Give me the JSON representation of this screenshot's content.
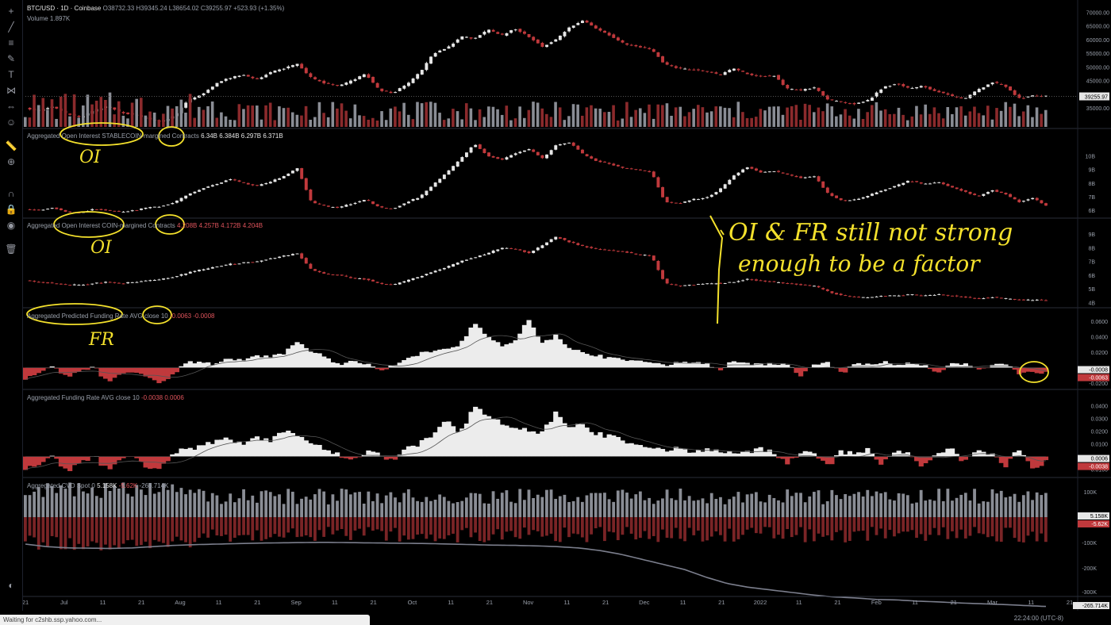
{
  "window": {
    "symbol": "BTC/USD · 1D · Coinbase",
    "ohlc": "O38732.33 H39345.24 L38654.02 C39255.97 +523.93 (+1.35%)",
    "volume": "Volume 1.897K",
    "status_bar": "Waiting for c2shb.ssp.yahoo.com...",
    "clock": "22:24:00 (UTC-8)"
  },
  "colors": {
    "up": "#e6e6e6",
    "down": "#c0393c",
    "bg": "#000000",
    "annotation": "#f4e12c",
    "cvd_line": "#7b7e8c"
  },
  "toolbar_icons": [
    "crosshair-icon",
    "trendline-icon",
    "fib-icon",
    "brush-icon",
    "text-icon",
    "pattern-icon",
    "measure-icon",
    "emoji-icon",
    "ruler-icon",
    "zoom-icon",
    "magnet-icon",
    "lock-icon",
    "eye-icon",
    "trash-icon"
  ],
  "panes": {
    "oi_stable": {
      "label": "Aggregated Open Interest STABLECOIN-margined Contracts",
      "values": "6.34B 6.384B 6.297B 6.371B"
    },
    "oi_coin": {
      "label": "Aggregated Open Interest COIN-margined Contracts",
      "values": "4.208B 4.257B 4.172B 4.204B"
    },
    "pfr": {
      "label": "Aggregated Predicted Funding Rate AVG close 10",
      "values": "-0.0063 -0.0008"
    },
    "fr": {
      "label": "Aggregated Funding Rate AVG close 10",
      "values": "-0.0038 0.0006"
    },
    "cvd": {
      "label": "Aggregated CVD Spot 0",
      "val1": "5.158K",
      "val2": "-5.62K",
      "val3": "-265.714K"
    }
  },
  "annotations": {
    "oi1": "OI",
    "oi2": "OI",
    "fr": "FR",
    "note_line1": "OI & FR still not strong",
    "note_line2": "enough to be a factor"
  },
  "chart_data": [
    {
      "type": "candlestick",
      "title": "BTC/USD · 1D · Coinbase",
      "y_ticks": [
        "70000.00",
        "65000.00",
        "60000.00",
        "55000.00",
        "50000.00",
        "45000.00",
        "40000.00",
        "35000.00"
      ],
      "last_price": "39255.97",
      "volume_label": "1.897K",
      "x_ticks": [
        "21",
        "Jul",
        "11",
        "21",
        "Aug",
        "11",
        "21",
        "Sep",
        "11",
        "21",
        "Oct",
        "11",
        "21",
        "Nov",
        "11",
        "21",
        "Dec",
        "11",
        "21",
        "2022",
        "11",
        "21",
        "Feb",
        "11",
        "21",
        "Mar",
        "11",
        "21"
      ],
      "close_path": [
        35000,
        34000,
        35500,
        33000,
        31500,
        34000,
        35500,
        33500,
        32500,
        31000,
        30000,
        32500,
        38000,
        40000,
        44000,
        46000,
        47000,
        45500,
        48000,
        49500,
        51000,
        46000,
        44000,
        43000,
        45000,
        47500,
        41500,
        40500,
        43500,
        48000,
        55000,
        57000,
        61000,
        60500,
        63500,
        61500,
        64000,
        61000,
        57500,
        60000,
        64500,
        67000,
        64000,
        61500,
        58500,
        57500,
        56500,
        51000,
        49500,
        49000,
        48500,
        47000,
        49500,
        47500,
        46500,
        47000,
        42000,
        41500,
        42500,
        38000,
        37000,
        36500,
        38000,
        42500,
        44000,
        42000,
        43000,
        41000,
        39500,
        38500,
        41500,
        44500,
        43000,
        38500,
        39500,
        39255.97
      ]
    },
    {
      "type": "candlestick",
      "title": "Aggregated Open Interest STABLECOIN-margined Contracts",
      "y_ticks": [
        "10B",
        "9B",
        "8B",
        "7B",
        "6B"
      ],
      "close_path": [
        6.1,
        6.0,
        6.2,
        5.9,
        5.8,
        6.1,
        6.0,
        5.9,
        6.0,
        6.2,
        6.3,
        6.6,
        7.2,
        7.6,
        7.9,
        8.3,
        8.0,
        7.8,
        8.1,
        8.5,
        9.1,
        6.6,
        6.3,
        6.2,
        6.5,
        6.8,
        6.2,
        6.1,
        6.6,
        7.0,
        7.9,
        8.8,
        9.8,
        10.9,
        10.0,
        9.7,
        10.2,
        10.5,
        9.8,
        10.8,
        11.0,
        10.1,
        9.6,
        9.4,
        9.1,
        9.0,
        8.8,
        6.6,
        6.5,
        6.8,
        6.9,
        7.5,
        8.5,
        9.2,
        8.8,
        8.9,
        8.6,
        8.4,
        8.5,
        7.2,
        6.7,
        6.8,
        7.1,
        7.5,
        7.8,
        8.2,
        7.9,
        8.1,
        7.7,
        7.4,
        7.0,
        7.5,
        7.2,
        6.6,
        6.9,
        6.371
      ]
    },
    {
      "type": "candlestick",
      "title": "Aggregated Open Interest COIN-margined Contracts",
      "y_ticks": [
        "9B",
        "8B",
        "7B",
        "6B",
        "5B",
        "4B"
      ],
      "close_path": [
        5.6,
        5.5,
        5.4,
        5.3,
        5.3,
        5.4,
        5.5,
        5.4,
        5.5,
        5.6,
        5.7,
        5.9,
        6.2,
        6.4,
        6.6,
        6.8,
        6.9,
        7.0,
        7.2,
        7.4,
        7.6,
        6.4,
        6.1,
        6.0,
        5.8,
        5.7,
        5.4,
        5.3,
        5.6,
        5.9,
        6.3,
        6.6,
        7.0,
        7.3,
        7.6,
        8.0,
        7.9,
        7.6,
        8.2,
        8.8,
        8.4,
        8.1,
        7.9,
        7.8,
        7.7,
        7.5,
        7.4,
        5.4,
        5.2,
        5.3,
        5.4,
        5.4,
        5.5,
        5.7,
        5.6,
        5.5,
        5.4,
        5.3,
        5.2,
        4.8,
        4.5,
        4.4,
        4.4,
        4.5,
        4.5,
        4.6,
        4.5,
        4.6,
        4.5,
        4.4,
        4.3,
        4.4,
        4.3,
        4.2,
        4.2,
        4.204
      ]
    },
    {
      "type": "area",
      "title": "Aggregated Predicted Funding Rate AVG close 10",
      "y_ticks": [
        "0.0600",
        "0.0400",
        "0.0200",
        "-0.0200"
      ],
      "ylim": [
        -0.025,
        0.065
      ],
      "values": [
        -0.015,
        -0.008,
        0.004,
        -0.012,
        -0.006,
        0.002,
        -0.018,
        -0.01,
        -0.004,
        -0.014,
        -0.02,
        -0.006,
        0.008,
        0.006,
        0.004,
        0.012,
        0.01,
        0.016,
        0.014,
        0.018,
        0.035,
        0.02,
        0.015,
        0.004,
        0.008,
        0.006,
        -0.004,
        0.002,
        0.012,
        0.018,
        0.022,
        0.025,
        0.03,
        0.058,
        0.04,
        0.028,
        0.034,
        0.062,
        0.03,
        0.042,
        0.024,
        0.02,
        0.016,
        0.012,
        0.01,
        0.01,
        0.008,
        0.002,
        0.006,
        0.008,
        0.006,
        -0.004,
        0.008,
        0.006,
        0.004,
        0.006,
        0.004,
        -0.01,
        0.004,
        0.006,
        -0.008,
        0.006,
        0.004,
        0.008,
        0.002,
        0.006,
        0.004,
        -0.006,
        0.004,
        0.006,
        -0.004,
        0.002,
        0.006,
        -0.008,
        -0.006,
        -0.0063
      ],
      "last_values": [
        "-0.0008",
        "-0.0063"
      ]
    },
    {
      "type": "area",
      "title": "Aggregated Funding Rate AVG close 10",
      "y_ticks": [
        "0.0400",
        "0.0300",
        "0.0200",
        "0.0100",
        "-0.0100"
      ],
      "ylim": [
        -0.014,
        0.046
      ],
      "values": [
        -0.01,
        -0.008,
        0.003,
        -0.012,
        -0.006,
        0.001,
        -0.01,
        -0.004,
        0.002,
        -0.012,
        -0.008,
        0.004,
        0.006,
        0.008,
        0.012,
        0.014,
        0.01,
        0.016,
        0.012,
        0.02,
        0.018,
        0.01,
        0.006,
        0.002,
        -0.004,
        0.004,
        0.002,
        -0.004,
        0.008,
        0.01,
        0.018,
        0.03,
        0.018,
        0.04,
        0.032,
        0.026,
        0.022,
        0.02,
        0.018,
        0.035,
        0.022,
        0.026,
        0.018,
        0.016,
        0.012,
        0.01,
        0.008,
        0.004,
        0.006,
        0.004,
        0.006,
        0.004,
        0.002,
        0.004,
        0.006,
        0.004,
        -0.006,
        0.004,
        0.002,
        -0.008,
        0.004,
        0.002,
        0.006,
        -0.006,
        0.004,
        0.002,
        -0.008,
        0.004,
        0.006,
        -0.004,
        0.004,
        0.002,
        -0.008,
        0.006,
        -0.01,
        -0.0038
      ],
      "last_values": [
        "0.0006",
        "-0.0038"
      ]
    },
    {
      "type": "bar+line",
      "title": "Aggregated CVD Spot 0",
      "y_ticks": [
        "100K",
        "-100K",
        "-200K",
        "-300K"
      ],
      "line": [
        -20,
        -30,
        -35,
        -36,
        -37,
        -35,
        -30,
        -25,
        -22,
        -20,
        -18,
        -16,
        -15,
        -14,
        -13,
        -14,
        -15,
        -16,
        -17,
        -18,
        -20,
        -22,
        -24,
        -25,
        -27,
        -30,
        -35,
        -45,
        -60,
        -80,
        -100,
        -120,
        -150,
        -175,
        -190,
        -200,
        -210,
        -220,
        -228,
        -232,
        -238,
        -240,
        -245,
        -248,
        -252,
        -255,
        -258,
        -262,
        -265.714
      ],
      "last_values": [
        "5.158K",
        "-5.62K",
        "-265.714K"
      ]
    }
  ]
}
